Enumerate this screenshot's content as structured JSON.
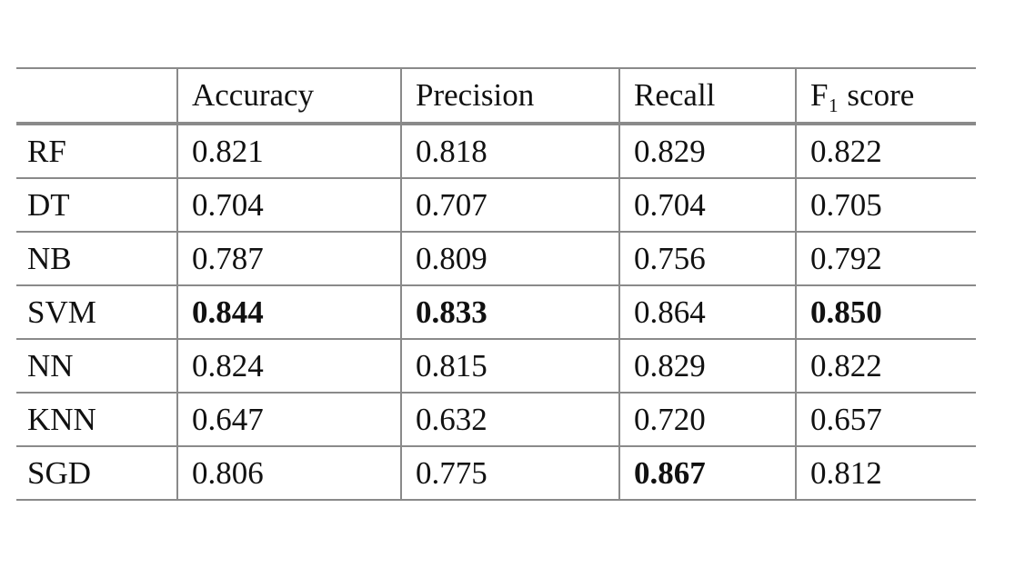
{
  "table": {
    "header": [
      "Accuracy",
      "Precision",
      "Recall",
      "F₁ score"
    ],
    "rows": [
      {
        "model": "RF",
        "values": [
          "0.821",
          "0.818",
          "0.829",
          "0.822"
        ],
        "bold": [
          false,
          false,
          false,
          false
        ]
      },
      {
        "model": "DT",
        "values": [
          "0.704",
          "0.707",
          "0.704",
          "0.705"
        ],
        "bold": [
          false,
          false,
          false,
          false
        ]
      },
      {
        "model": "NB",
        "values": [
          "0.787",
          "0.809",
          "0.756",
          "0.792"
        ],
        "bold": [
          false,
          false,
          false,
          false
        ]
      },
      {
        "model": "SVM",
        "values": [
          "0.844",
          "0.833",
          "0.864",
          "0.850"
        ],
        "bold": [
          true,
          true,
          false,
          true
        ]
      },
      {
        "model": "NN",
        "values": [
          "0.824",
          "0.815",
          "0.829",
          "0.822"
        ],
        "bold": [
          false,
          false,
          false,
          false
        ]
      },
      {
        "model": "KNN",
        "values": [
          "0.647",
          "0.632",
          "0.720",
          "0.657"
        ],
        "bold": [
          false,
          false,
          false,
          false
        ]
      },
      {
        "model": "SGD",
        "values": [
          "0.806",
          "0.775",
          "0.867",
          "0.812"
        ],
        "bold": [
          false,
          false,
          true,
          false
        ]
      }
    ]
  }
}
